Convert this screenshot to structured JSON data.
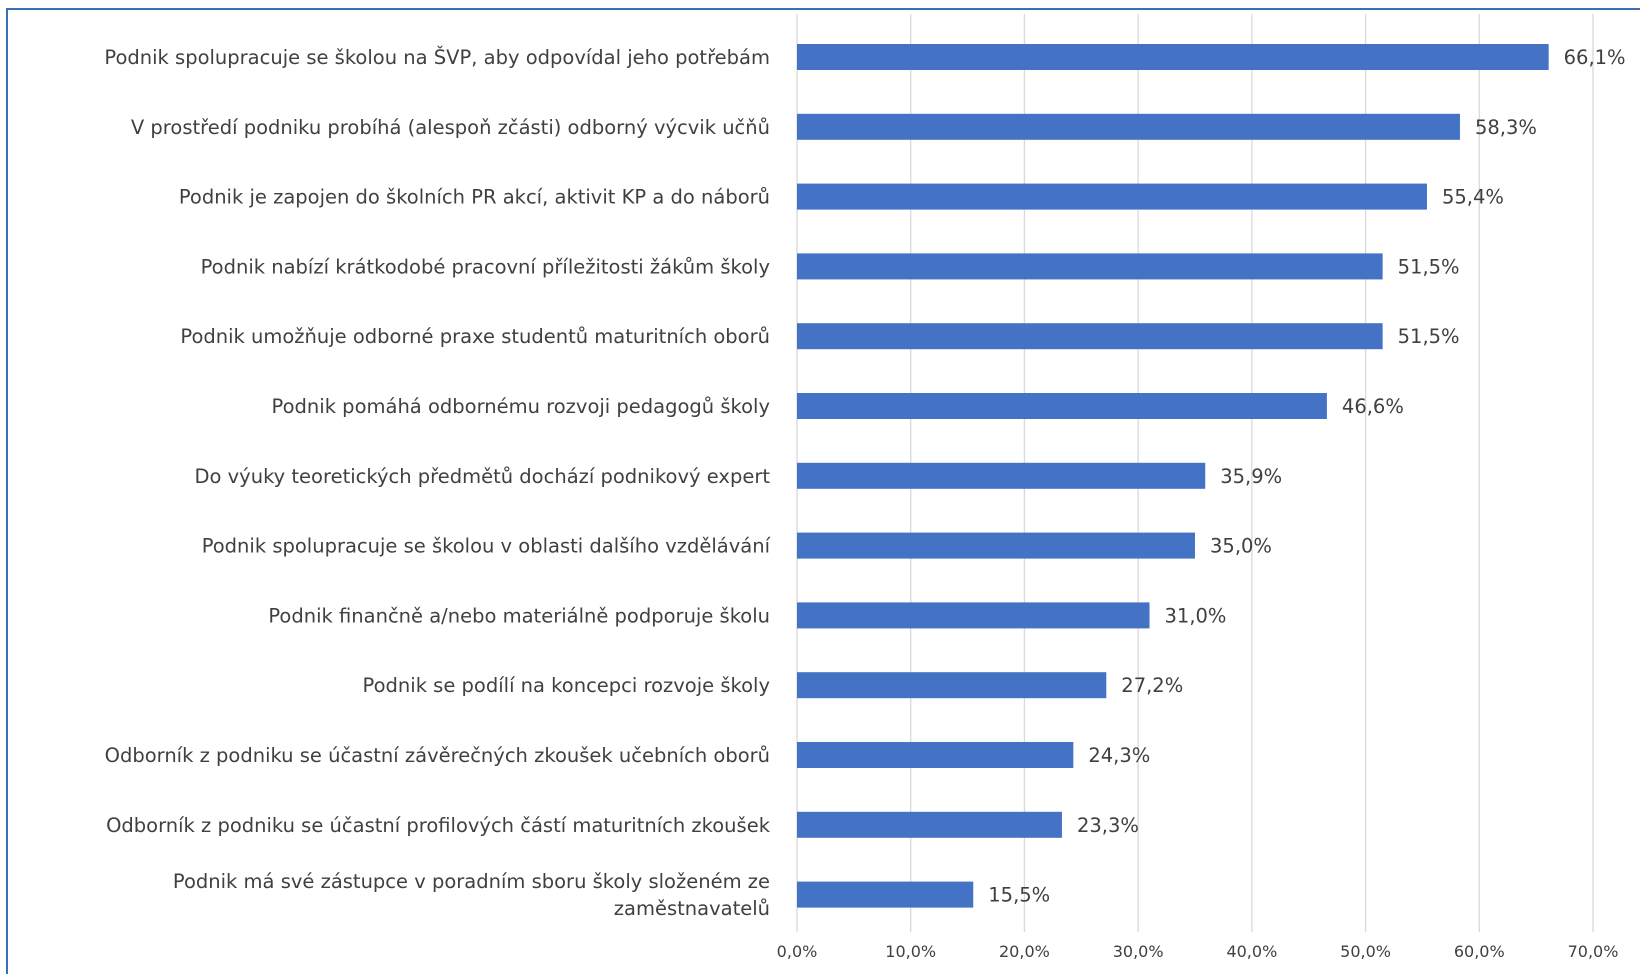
{
  "chart_data": {
    "type": "bar",
    "orientation": "horizontal",
    "categories": [
      [
        "Podnik spolupracuje se školou na ŠVP, aby odpovídal jeho potřebám"
      ],
      [
        "V prostředí podniku probíhá (alespoň zčásti) odborný výcvik učňů"
      ],
      [
        "Podnik je zapojen do školních PR akcí, aktivit KP a do náborů"
      ],
      [
        "Podnik nabízí krátkodobé pracovní příležitosti žákům školy"
      ],
      [
        "Podnik umožňuje odborné praxe studentů maturitních oborů"
      ],
      [
        "Podnik pomáhá odbornému rozvoji pedagogů školy"
      ],
      [
        "Do výuky teoretických předmětů dochází podnikový expert"
      ],
      [
        "Podnik spolupracuje se školou v oblasti dalšího vzdělávání"
      ],
      [
        "Podnik finančně a/nebo materiálně podporuje školu"
      ],
      [
        "Podnik se podílí na koncepci rozvoje školy"
      ],
      [
        "Odborník z podniku se účastní závěrečných zkoušek učebních oborů"
      ],
      [
        "Odborník z podniku se účastní profilových částí maturitních zkoušek"
      ],
      [
        "Podnik má své zástupce v poradním sboru školy složeném ze",
        "zaměstnavatelů"
      ]
    ],
    "values": [
      66.1,
      58.3,
      55.4,
      51.5,
      51.5,
      46.6,
      35.9,
      35.0,
      31.0,
      27.2,
      24.3,
      23.3,
      15.5
    ],
    "value_labels": [
      "66,1%",
      "58,3%",
      "55,4%",
      "51,5%",
      "51,5%",
      "46,6%",
      "35,9%",
      "35,0%",
      "31,0%",
      "27,2%",
      "24,3%",
      "23,3%",
      "15,5%"
    ],
    "xlim": [
      0,
      70
    ],
    "xticks": [
      0,
      10,
      20,
      30,
      40,
      50,
      60,
      70
    ],
    "xtick_labels": [
      "0,0%",
      "10,0%",
      "20,0%",
      "30,0%",
      "40,0%",
      "50,0%",
      "60,0%",
      "70,0%"
    ],
    "grid": "vertical",
    "bar_color": "#4472c4",
    "title": "",
    "xlabel": "",
    "ylabel": ""
  }
}
